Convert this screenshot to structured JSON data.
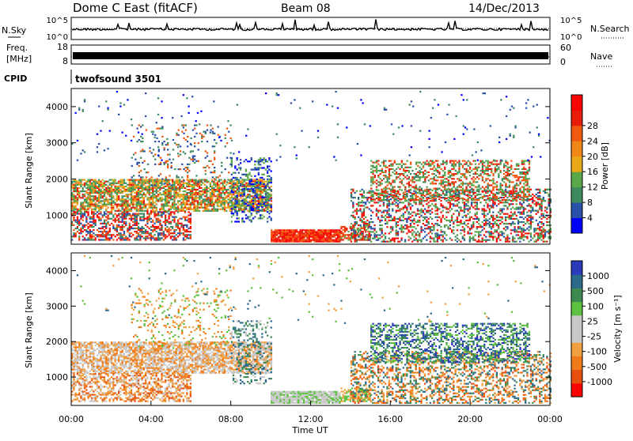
{
  "header": {
    "station": "Dome C East (fitACF)",
    "beam": "Beam 08",
    "date": "14/Dec/2013"
  },
  "noise_panel": {
    "left_label": "N.Sky",
    "left_ticks": [
      "10^5",
      "10^0"
    ],
    "right_label": "N.Search",
    "right_ticks": [
      "10^5",
      "10^0"
    ]
  },
  "freq_panel": {
    "left_label_1": "Freq.",
    "left_label_2": "[MHz]",
    "left_ticks": [
      "18",
      "8"
    ],
    "right_label": "Nave",
    "right_ticks": [
      "60",
      "0"
    ]
  },
  "cpid_panel": {
    "label": "CPID",
    "value": "twofsound 3501"
  },
  "colors": {
    "power": [
      "#0000ff",
      "#2a4fa8",
      "#3d8a5e",
      "#5aa84a",
      "#e8a818",
      "#f08818",
      "#f05a10",
      "#e81e0a",
      "#ff0000"
    ],
    "velocity": [
      "#ff0000",
      "#e85010",
      "#f07a18",
      "#f0a040",
      "#c8c8c8",
      "#c8c8c8",
      "#5cc040",
      "#3c8a50",
      "#2c6a8a",
      "#2a3ab8"
    ]
  },
  "chart_data": [
    {
      "type": "heatmap",
      "name": "power",
      "ylabel": "Slant Range [km]",
      "y_ticks": [
        "1000",
        "2000",
        "3000",
        "4000"
      ],
      "ylim": [
        200,
        4500
      ],
      "colorbar_label": "Power [dB]",
      "colorbar_ticks": [
        "4",
        "8",
        "12",
        "16",
        "20",
        "24",
        "28"
      ],
      "xlim": [
        "00:00",
        "24:00"
      ]
    },
    {
      "type": "heatmap",
      "name": "velocity",
      "xlabel": "Time UT",
      "x_ticks": [
        "00:00",
        "04:00",
        "08:00",
        "12:00",
        "16:00",
        "20:00",
        "00:00"
      ],
      "ylabel": "Slant Range [km]",
      "y_ticks": [
        "1000",
        "2000",
        "3000",
        "4000"
      ],
      "ylim": [
        200,
        4500
      ],
      "colorbar_label": "Velocity [m s⁻¹]",
      "colorbar_ticks": [
        "1000",
        "500",
        "100",
        "25",
        "-25",
        "-100",
        "-500",
        "-1000"
      ],
      "xlim": [
        "00:00",
        "24:00"
      ]
    }
  ]
}
